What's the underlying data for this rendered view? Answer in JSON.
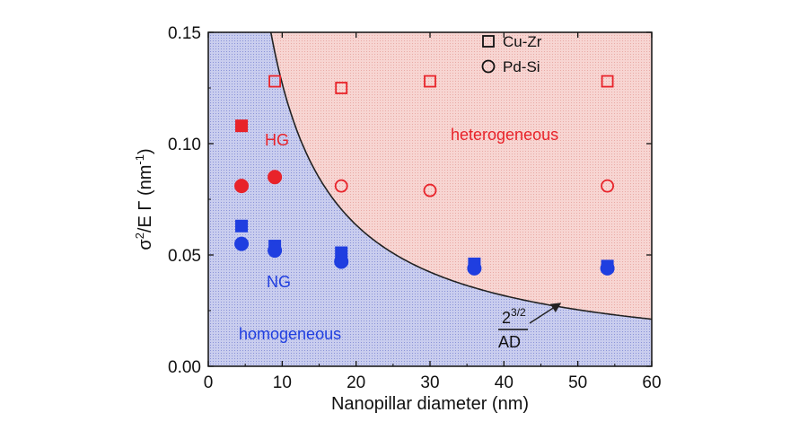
{
  "chart_data": {
    "type": "scatter",
    "xlabel": "Nanopillar diameter (nm)",
    "ylabel": {
      "base": "σ",
      "sup1": "2",
      "mid": "/E Γ (nm",
      "sup2": "-1",
      "end": ")"
    },
    "xlim": [
      0,
      60
    ],
    "ylim": [
      0,
      0.15
    ],
    "x_ticks": [
      0,
      10,
      20,
      30,
      40,
      50,
      60
    ],
    "x_tick_labels": [
      "0",
      "10",
      "20",
      "30",
      "40",
      "50",
      "60"
    ],
    "y_ticks": [
      0,
      0.05,
      0.1,
      0.15
    ],
    "y_tick_labels": [
      "0.00",
      "0.05",
      "0.10",
      "0.15"
    ],
    "regions": {
      "homogeneous": {
        "label": "homogeneous",
        "color": "#c8cdec"
      },
      "heterogeneous": {
        "label": "heterogeneous",
        "color": "#f6d3d0"
      },
      "hg_label": "HG",
      "ng_label": "NG"
    },
    "boundary_curve": {
      "formula_num": "2",
      "formula_exp": "3/2",
      "formula_den": "AD",
      "k": 1.27
    },
    "legend": [
      {
        "label": "Cu-Zr",
        "marker": "square"
      },
      {
        "label": "Pd-Si",
        "marker": "circle"
      }
    ],
    "colors": {
      "red": "#e8232a",
      "blue": "#1f3ee0",
      "curve": "#222222"
    },
    "series": [
      {
        "marker": "square",
        "filled": true,
        "color": "red",
        "points": [
          [
            4.5,
            0.108
          ]
        ]
      },
      {
        "marker": "circle",
        "filled": true,
        "color": "red",
        "points": [
          [
            4.5,
            0.081
          ],
          [
            9,
            0.085
          ]
        ]
      },
      {
        "marker": "square",
        "filled": false,
        "color": "red",
        "points": [
          [
            9,
            0.128
          ],
          [
            18,
            0.125
          ],
          [
            30,
            0.128
          ],
          [
            54,
            0.128
          ]
        ]
      },
      {
        "marker": "circle",
        "filled": false,
        "color": "red",
        "points": [
          [
            18,
            0.081
          ],
          [
            30,
            0.079
          ],
          [
            54,
            0.081
          ]
        ]
      },
      {
        "marker": "square",
        "filled": true,
        "color": "blue",
        "points": [
          [
            4.5,
            0.063
          ],
          [
            9,
            0.054
          ],
          [
            18,
            0.051
          ],
          [
            36,
            0.046
          ],
          [
            54,
            0.045
          ]
        ]
      },
      {
        "marker": "circle",
        "filled": true,
        "color": "blue",
        "points": [
          [
            4.5,
            0.055
          ],
          [
            9,
            0.052
          ],
          [
            18,
            0.047
          ],
          [
            36,
            0.044
          ],
          [
            54,
            0.044
          ]
        ]
      }
    ]
  }
}
